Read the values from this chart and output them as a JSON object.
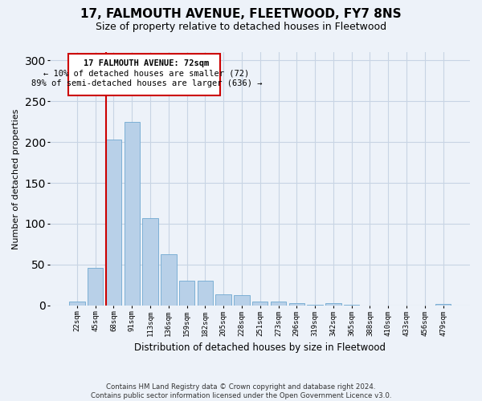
{
  "title": "17, FALMOUTH AVENUE, FLEETWOOD, FY7 8NS",
  "subtitle": "Size of property relative to detached houses in Fleetwood",
  "xlabel": "Distribution of detached houses by size in Fleetwood",
  "ylabel": "Number of detached properties",
  "bar_color": "#b8d0e8",
  "bar_edge_color": "#6fa8d0",
  "grid_color": "#c8d4e4",
  "annotation_box_color": "#cc0000",
  "vline_color": "#cc0000",
  "categories": [
    "22sqm",
    "45sqm",
    "68sqm",
    "91sqm",
    "113sqm",
    "136sqm",
    "159sqm",
    "182sqm",
    "205sqm",
    "228sqm",
    "251sqm",
    "273sqm",
    "296sqm",
    "319sqm",
    "342sqm",
    "365sqm",
    "388sqm",
    "410sqm",
    "433sqm",
    "456sqm",
    "479sqm"
  ],
  "values": [
    5,
    46,
    203,
    225,
    107,
    63,
    30,
    30,
    14,
    13,
    5,
    5,
    3,
    1,
    3,
    1,
    0,
    0,
    0,
    0,
    2
  ],
  "ylim": [
    0,
    310
  ],
  "yticks": [
    0,
    50,
    100,
    150,
    200,
    250,
    300
  ],
  "property_label": "17 FALMOUTH AVENUE: 72sqm",
  "annotation_line1": "← 10% of detached houses are smaller (72)",
  "annotation_line2": "89% of semi-detached houses are larger (636) →",
  "vline_x": 1.575,
  "footer_line1": "Contains HM Land Registry data © Crown copyright and database right 2024.",
  "footer_line2": "Contains public sector information licensed under the Open Government Licence v3.0.",
  "background_color": "#edf2f9",
  "plot_bg_color": "#edf2f9",
  "title_fontsize": 11,
  "subtitle_fontsize": 9
}
